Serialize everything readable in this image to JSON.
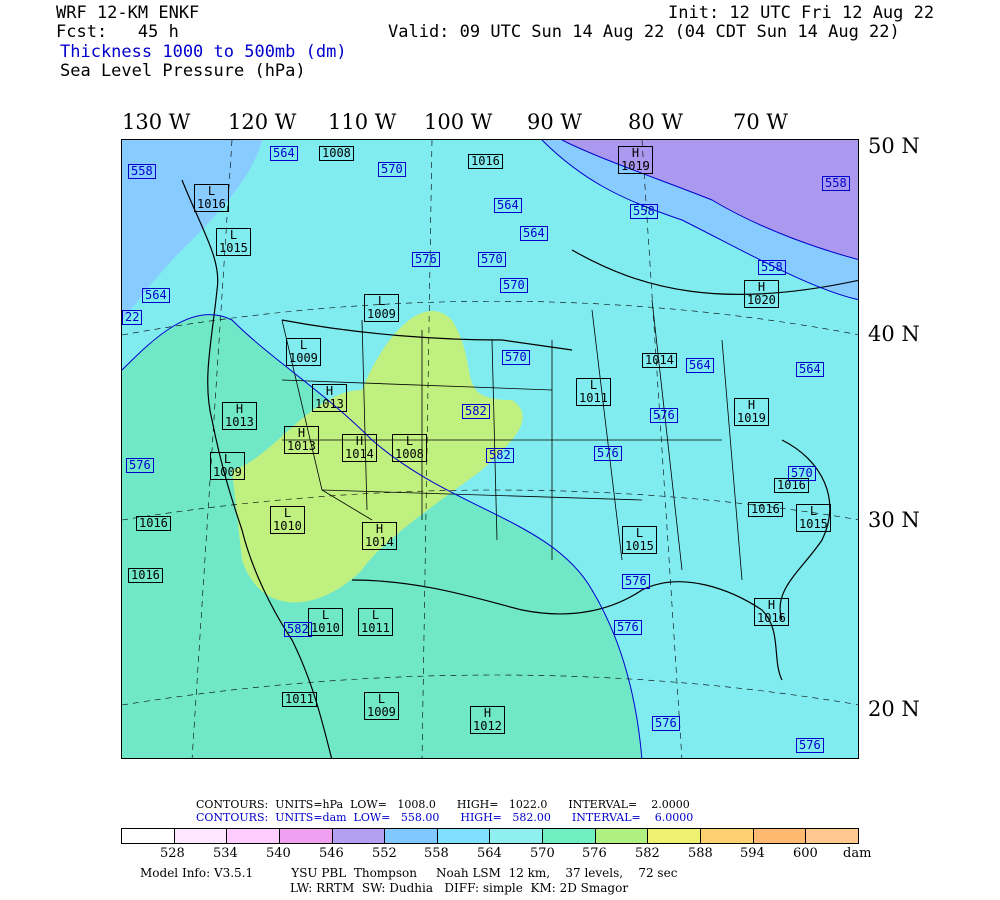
{
  "header": {
    "model": "WRF 12-KM ENKF",
    "fcst": "Fcst:   45 h",
    "init": "Init: 12 UTC Fri 12 Aug 22",
    "valid": "Valid: 09 UTC Sun 14 Aug 22 (04 CDT Sun 14 Aug 22)",
    "field1": "Thickness 1000 to 500mb (dm)",
    "field2": "Sea Level Pressure (hPa)"
  },
  "longitudes": [
    "130 W",
    "120 W",
    "110 W",
    "100 W",
    "90 W",
    "80 W",
    "70 W"
  ],
  "latitudes": [
    "50 N",
    "40 N",
    "30 N",
    "20 N"
  ],
  "pressure_labels": [
    {
      "t": "L\n1016"
    },
    {
      "t": "L\n1015"
    },
    {
      "t": "1008"
    },
    {
      "t": "1016"
    },
    {
      "t": "H\n1019"
    },
    {
      "t": "L\n1009"
    },
    {
      "t": "L\n1009"
    },
    {
      "t": "H\n1013"
    },
    {
      "t": "H\n1013"
    },
    {
      "t": "H\n1013"
    },
    {
      "t": "H\n1014"
    },
    {
      "t": "L\n1008"
    },
    {
      "t": "L\n1011"
    },
    {
      "t": "1014"
    },
    {
      "t": "H\n1020"
    },
    {
      "t": "H\n1019"
    },
    {
      "t": "L\n1009"
    },
    {
      "t": "L\n1010"
    },
    {
      "t": "1016"
    },
    {
      "t": "1016"
    },
    {
      "t": "H\n1014"
    },
    {
      "t": "L\n1015"
    },
    {
      "t": "1016"
    },
    {
      "t": "1016"
    },
    {
      "t": "L\n1015"
    },
    {
      "t": "H\n1016"
    },
    {
      "t": "L\n1010"
    },
    {
      "t": "L\n1011"
    },
    {
      "t": "1011"
    },
    {
      "t": "L\n1009"
    },
    {
      "t": "H\n1012"
    }
  ],
  "thickness_labels": [
    {
      "t": "558"
    },
    {
      "t": "564"
    },
    {
      "t": "570"
    },
    {
      "t": "558"
    },
    {
      "t": "564"
    },
    {
      "t": "564"
    },
    {
      "t": "558"
    },
    {
      "t": "576"
    },
    {
      "t": "570"
    },
    {
      "t": "570"
    },
    {
      "t": "564"
    },
    {
      "t": "558"
    },
    {
      "t": "22"
    },
    {
      "t": "570"
    },
    {
      "t": "564"
    },
    {
      "t": "564"
    },
    {
      "t": "582"
    },
    {
      "t": "582"
    },
    {
      "t": "576"
    },
    {
      "t": "576"
    },
    {
      "t": "570"
    },
    {
      "t": "576"
    },
    {
      "t": "576"
    },
    {
      "t": "582"
    },
    {
      "t": "576"
    },
    {
      "t": "576"
    },
    {
      "t": "576"
    }
  ],
  "legend": {
    "contours_slp": "CONTOURS:  UNITS=hPa  LOW=   1008.0      HIGH=   1022.0      INTERVAL=    2.0000",
    "contours_thk": "CONTOURS:  UNITS=dam  LOW=   558.00      HIGH=   582.00      INTERVAL=    6.0000",
    "tick_values": [
      "528",
      "534",
      "540",
      "546",
      "552",
      "558",
      "564",
      "570",
      "576",
      "582",
      "588",
      "594",
      "600"
    ],
    "unit": "dam",
    "colors": [
      "#ffffff",
      "#ffe6ff",
      "#ffccff",
      "#f0a0f0",
      "#b4a0f0",
      "#80c8ff",
      "#80e0ff",
      "#90f0f0",
      "#70f0c0",
      "#b0f080",
      "#f0f070",
      "#ffd070",
      "#ffb870",
      "#ffc890"
    ],
    "model_info": "Model Info: V3.5.1          YSU PBL  Thompson     Noah LSM  12 km,    37 levels,    72 sec",
    "model_info2": "LW: RRTM  SW: Dudhia   DIFF: simple  KM: 2D Smagor"
  },
  "fill_colors": {
    "purple": "#aa99ee",
    "light_blue": "#88ccff",
    "cyan": "#80ecf0",
    "teal": "#70e8c8",
    "green": "#c0f080"
  }
}
